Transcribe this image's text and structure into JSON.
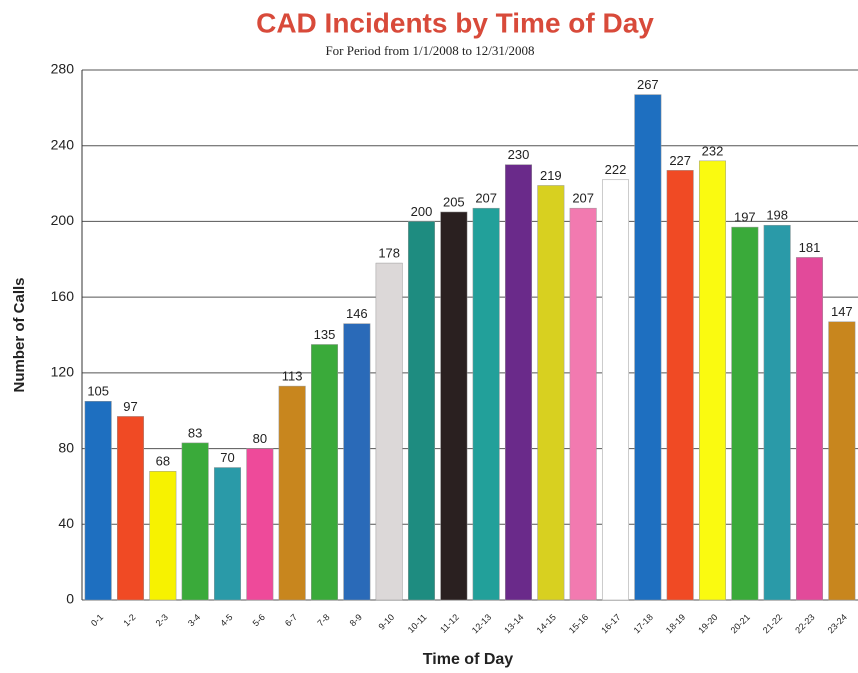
{
  "chart_data": {
    "type": "bar",
    "title": "CAD Incidents by Time of Day",
    "subtitle": "For Period from 1/1/2008 to 12/31/2008",
    "x_label": "Time of Day",
    "y_label": "Number of Calls",
    "categories": [
      "0-1",
      "1-2",
      "2-3",
      "3-4",
      "4-5",
      "5-6",
      "6-7",
      "7-8",
      "8-9",
      "9-10",
      "10-11",
      "11-12",
      "12-13",
      "13-14",
      "14-15",
      "15-16",
      "16-17",
      "17-18",
      "18-19",
      "19-20",
      "20-21",
      "21-22",
      "22-23",
      "23-24"
    ],
    "values": [
      105,
      97,
      68,
      83,
      70,
      80,
      113,
      135,
      146,
      178,
      200,
      205,
      207,
      230,
      219,
      207,
      222,
      267,
      227,
      232,
      197,
      198,
      181,
      147
    ],
    "colors": [
      "#1e6fc0",
      "#f04a24",
      "#f7f200",
      "#3aaa3a",
      "#2a9aa8",
      "#ee4a9a",
      "#c8861e",
      "#3aaa3a",
      "#2a6ab8",
      "#dcd8d8",
      "#1e8c80",
      "#2a2020",
      "#22a09a",
      "#6a2a8a",
      "#d8d020",
      "#f27ab0",
      "#ffffff",
      "#1e6fc0",
      "#f04a24",
      "#fafa10",
      "#3aaa3a",
      "#2a9aa8",
      "#e24a9a",
      "#c8861e"
    ],
    "ylim": [
      0,
      280
    ],
    "yticks": [
      0,
      40,
      80,
      120,
      160,
      200,
      240,
      280
    ],
    "grid": true
  }
}
